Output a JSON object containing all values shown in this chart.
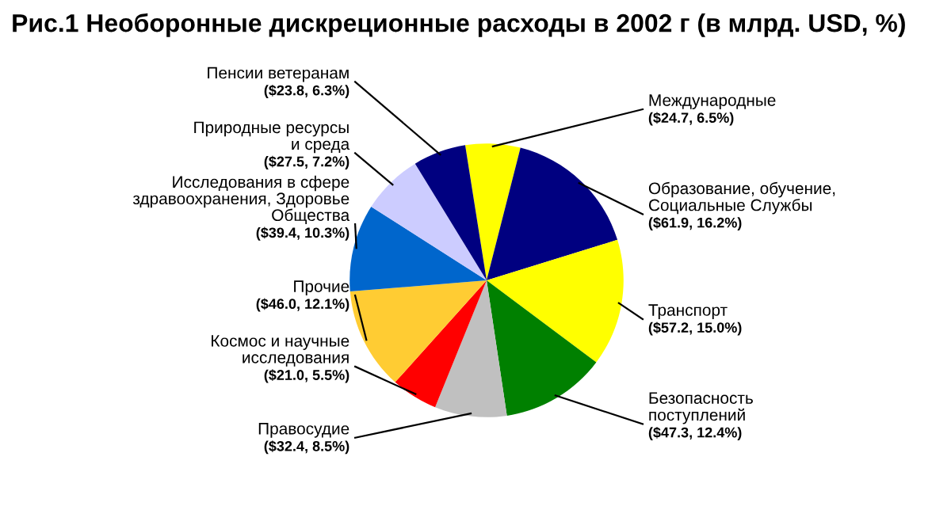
{
  "chart_data": {
    "type": "pie",
    "title": "Рис.1 Необоронные дискреционные расходы в 2002 г (в млрд. USD, %)",
    "categories": [
      "Международные",
      "Образование, обучение,\nСоциальные Службы",
      "Транспорт",
      "Безопасность\nпоступлений",
      "Правосудие",
      "Космос и научные\nисследования",
      "Прочие",
      "Исследования в сфере\nздравоохранения, Здоровье\nОбщества",
      "Природные ресурсы\nи среда",
      "Пенсии ветеранам"
    ],
    "values": [
      24.7,
      61.9,
      57.2,
      47.3,
      32.4,
      21.0,
      46.0,
      39.4,
      27.5,
      23.8
    ],
    "value_labels": [
      "($24.7, 6.5%)",
      "($61.9, 16.2%)",
      "($57.2, 15.0%)",
      "($47.3, 12.4%)",
      "($32.4, 8.5%)",
      "($21.0, 5.5%)",
      "($46.0, 12.1%)",
      "($39.4, 10.3%)",
      "($27.5, 7.2%)",
      "($23.8, 6.3%)"
    ],
    "colors": [
      "#ffff00",
      "#000080",
      "#ffff00",
      "#008000",
      "#c0c0c0",
      "#ff0000",
      "#ffcc33",
      "#0066cc",
      "#ccccff",
      "#000080"
    ],
    "legend": false
  }
}
